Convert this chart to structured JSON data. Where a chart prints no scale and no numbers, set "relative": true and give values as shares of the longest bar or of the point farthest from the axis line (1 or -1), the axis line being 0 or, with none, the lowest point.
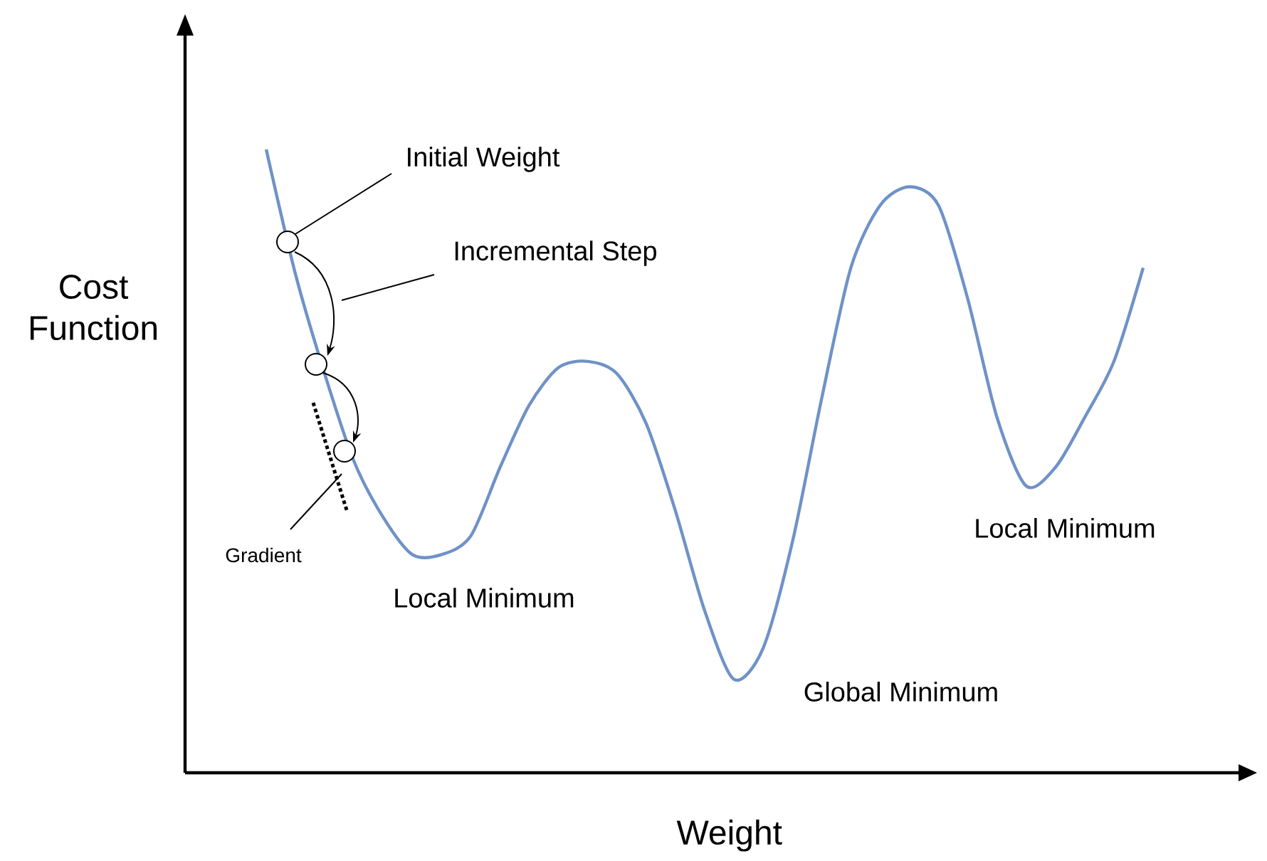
{
  "chart_data": {
    "type": "line",
    "relative": true,
    "xlabel": "Weight",
    "ylabel": "Cost Function",
    "color": "#6f92c7",
    "categories": [
      null,
      null,
      null,
      null,
      null,
      null,
      null,
      null,
      null,
      null,
      null,
      null,
      null,
      null,
      null,
      null,
      null,
      null,
      null,
      null,
      null,
      null,
      null,
      null,
      null,
      null,
      null,
      null,
      null,
      null,
      null
    ],
    "values": [
      1.0,
      0.8,
      0.64,
      0.5,
      0.41,
      0.35,
      0.35,
      0.38,
      0.49,
      0.59,
      0.65,
      0.66,
      0.64,
      0.56,
      0.42,
      0.26,
      0.15,
      0.2,
      0.37,
      0.6,
      0.81,
      0.91,
      0.94,
      0.91,
      0.76,
      0.57,
      0.46,
      0.49,
      0.57,
      0.66,
      0.81
    ],
    "annotations": [
      "Initial Weight",
      "Incremental Step",
      "Gradient",
      "Local Minimum",
      "Global Minimum",
      "Local Minimum"
    ]
  }
}
